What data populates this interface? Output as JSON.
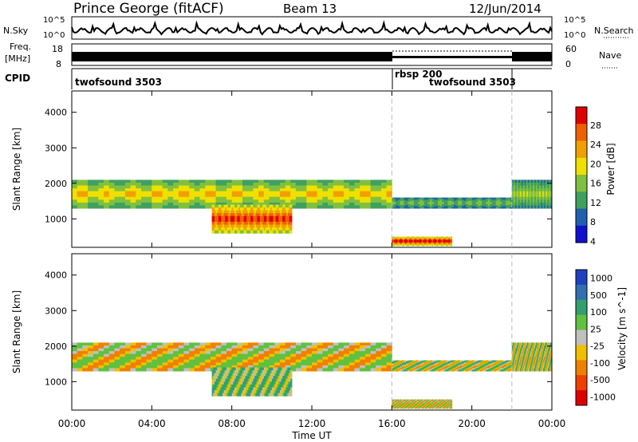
{
  "header": {
    "station": "Prince George (fitACF)",
    "beam": "Beam 13",
    "date": "12/Jun/2014"
  },
  "noise_panel": {
    "left_label": "N.Sky",
    "right_label": "N.Search",
    "right_ticks": [
      "10^5",
      "10^0"
    ],
    "left_ticks": [
      "10^5",
      "10^0"
    ]
  },
  "freq_panel": {
    "left_label_1": "Freq.",
    "left_label_2": "[MHz]",
    "left_ticks": [
      "18",
      "8"
    ],
    "right_label": "Nave",
    "right_ticks": [
      "60",
      "0"
    ]
  },
  "cpid_panel": {
    "label": "CPID",
    "segments": [
      {
        "name": "twofsound 3503",
        "start_hour": 0,
        "end_hour": 16
      },
      {
        "name": "rbsp 200",
        "start_hour": 16,
        "end_hour": 22
      },
      {
        "name": "twofsound 3503",
        "start_hour": 22,
        "end_hour": 24
      }
    ],
    "overlap_label": "twofsound 3503"
  },
  "x_axis": {
    "label": "Time UT",
    "ticks": [
      "00:00",
      "04:00",
      "08:00",
      "12:00",
      "16:00",
      "20:00",
      "00:00"
    ],
    "tick_hours": [
      0,
      4,
      8,
      12,
      16,
      20,
      24
    ],
    "mode_change_hours": [
      16,
      22
    ]
  },
  "power_panel": {
    "ylabel": "Slant Range [km]",
    "yticks": [
      1000,
      2000,
      3000,
      4000
    ],
    "ylim": [
      200,
      4600
    ],
    "colorbar_label": "Power [dB]",
    "colorbar_ticks": [
      "4",
      "8",
      "12",
      "16",
      "20",
      "24",
      "28"
    ],
    "colors": [
      "#1010d0",
      "#2060b0",
      "#40a060",
      "#80c040",
      "#f0e000",
      "#f0a000",
      "#f06000",
      "#e00000"
    ]
  },
  "velocity_panel": {
    "ylabel": "Slant Range [km]",
    "yticks": [
      1000,
      2000,
      3000,
      4000
    ],
    "ylim": [
      200,
      4600
    ],
    "colorbar_label": "Velocity [m s^-1]",
    "colorbar_ticks": [
      "1000",
      "500",
      "100",
      "25",
      "-25",
      "-100",
      "-500",
      "-1000"
    ],
    "colors": [
      "#2040c0",
      "#3070b0",
      "#30a070",
      "#60c040",
      "#c0c0c0",
      "#f0c000",
      "#f08000",
      "#f04000",
      "#e00000"
    ]
  },
  "chart_data": {
    "type": "heatmap",
    "title": "Prince George (fitACF)  Beam 13  12/Jun/2014",
    "xlabel": "Time UT",
    "ylabel": "Slant Range [km]",
    "xlim_hours": [
      0,
      24
    ],
    "ylim": [
      200,
      4600
    ],
    "power_scale_db": [
      0,
      30
    ],
    "velocity_scale": [
      -1000,
      1000
    ],
    "echo_bands": [
      {
        "start_hour": 0,
        "end_hour": 16,
        "range_km": [
          1300,
          2100
        ],
        "power_db": 18,
        "velocity": -25
      },
      {
        "start_hour": 7,
        "end_hour": 11,
        "range_km": [
          600,
          1400
        ],
        "power_db": 26,
        "velocity": 60
      },
      {
        "start_hour": 16,
        "end_hour": 22,
        "range_km": [
          1300,
          1600
        ],
        "power_db": 12,
        "velocity": 0
      },
      {
        "start_hour": 16,
        "end_hour": 19,
        "range_km": [
          250,
          500
        ],
        "power_db": 28,
        "velocity": -25
      },
      {
        "start_hour": 22,
        "end_hour": 24,
        "range_km": [
          1300,
          2100
        ],
        "power_db": 14,
        "velocity": 0
      }
    ]
  }
}
